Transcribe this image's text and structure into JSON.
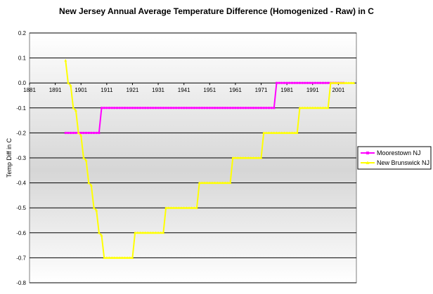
{
  "chart_data": {
    "type": "line",
    "title": "New Jersey Annual Average Temperature Difference (Homogenized - Raw) in C",
    "xlabel": "",
    "ylabel": "Temp Diff in C",
    "x_ticks": [
      "1881",
      "1891",
      "1901",
      "1911",
      "1921",
      "1931",
      "1941",
      "1951",
      "1961",
      "1971",
      "1981",
      "1991",
      "2001"
    ],
    "y_ticks": [
      "0.2",
      "0.1",
      "0.0",
      "-0.1",
      "-0.2",
      "-0.3",
      "-0.4",
      "-0.5",
      "-0.6",
      "-0.7",
      "-0.8"
    ],
    "xlim": [
      1881,
      2008
    ],
    "ylim": [
      -0.8,
      0.2
    ],
    "grid": "horizontal",
    "legend_position": "right",
    "series": [
      {
        "name": "Moorestown NJ",
        "color": "#FF00FF",
        "marker": "square",
        "segments": [
          {
            "from": 1895,
            "to": 1908,
            "value": -0.2
          },
          {
            "from": 1909,
            "to": 1976,
            "value": -0.1
          },
          {
            "from": 1977,
            "to": 2003,
            "value": 0.0
          }
        ]
      },
      {
        "name": "New Brunswick NJ",
        "color": "#FFFF00",
        "marker": "triangle",
        "points": [
          [
            1895,
            0.09
          ],
          [
            1896,
            0.0
          ],
          [
            1897,
            -0.01
          ],
          [
            1898,
            -0.1
          ],
          [
            1899,
            -0.11
          ],
          [
            1900,
            -0.2
          ],
          [
            1901,
            -0.21
          ],
          [
            1902,
            -0.3
          ],
          [
            1903,
            -0.31
          ],
          [
            1904,
            -0.4
          ],
          [
            1905,
            -0.41
          ],
          [
            1906,
            -0.5
          ],
          [
            1907,
            -0.51
          ],
          [
            1908,
            -0.6
          ],
          [
            1909,
            -0.61
          ],
          [
            1910,
            -0.7
          ]
        ],
        "segments": [
          {
            "from": 1910,
            "to": 1921,
            "value": -0.7
          },
          {
            "from": 1922,
            "to": 1933,
            "value": -0.6
          },
          {
            "from": 1934,
            "to": 1946,
            "value": -0.5
          },
          {
            "from": 1947,
            "to": 1959,
            "value": -0.4
          },
          {
            "from": 1960,
            "to": 1971,
            "value": -0.3
          },
          {
            "from": 1972,
            "to": 1985,
            "value": -0.2
          },
          {
            "from": 1986,
            "to": 1997,
            "value": -0.1
          },
          {
            "from": 1998,
            "to": 2007,
            "value": 0.0
          }
        ]
      }
    ]
  }
}
